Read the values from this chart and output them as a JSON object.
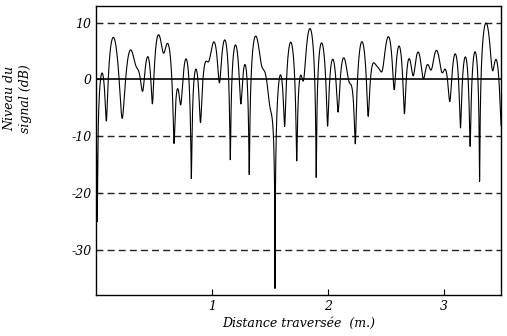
{
  "title": "",
  "xlabel": "Distance traversée  (m.)",
  "ylabel": "Niveau du\nsignal (dB)",
  "xlim": [
    0,
    3.5
  ],
  "ylim": [
    -38,
    13
  ],
  "yticks": [
    10,
    0,
    -10,
    -20,
    -30
  ],
  "xticks": [
    1,
    2,
    3
  ],
  "hlines_dashed": [
    10,
    -10,
    -20,
    -30
  ],
  "hlines_solid": [
    0
  ],
  "signal_color": "#000000",
  "background_color": "#ffffff",
  "seed": 7,
  "num_points": 4000,
  "x_max": 3.5,
  "N_paths": 8,
  "f_doppler": 6.5
}
